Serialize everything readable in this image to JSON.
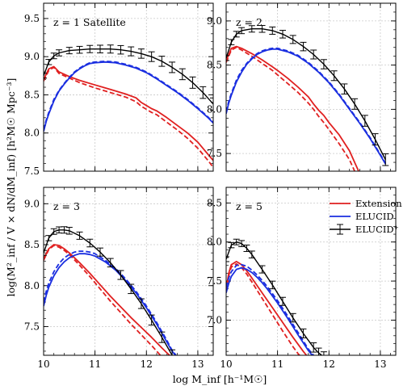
{
  "figure": {
    "xlabel": "log M_inf [h⁻¹M☉]",
    "ylabel": "log(M²_inf / V × dN/dM_inf)  [h²M☉ Mpc⁻³]",
    "legend": [
      "Extension",
      "ELUCID",
      "ELUCID⁺"
    ]
  },
  "colors": {
    "extension": "#e02020",
    "elucid": "#1a2ee0",
    "elucid_plus": "#000000",
    "grid": "#c8c8c8"
  },
  "chart_data": [
    {
      "type": "line",
      "title": "z = 1 Satellite",
      "xlim": [
        10,
        13.3
      ],
      "ylim": [
        7.5,
        9.7
      ],
      "xticks": [
        10,
        11,
        12,
        13
      ],
      "yticks": [
        7.5,
        8.0,
        8.5,
        9.0,
        9.5
      ],
      "series": [
        {
          "name": "Extension",
          "style": "solid",
          "color": "red",
          "x": [
            10.0,
            10.1,
            10.2,
            10.3,
            10.5,
            10.7,
            11.0,
            11.3,
            11.6,
            11.8,
            11.9,
            12.0,
            12.1,
            12.2,
            12.4,
            12.6,
            12.8,
            13.0,
            13.2,
            13.3
          ],
          "y": [
            8.7,
            8.84,
            8.87,
            8.8,
            8.74,
            8.69,
            8.63,
            8.57,
            8.51,
            8.46,
            8.4,
            8.36,
            8.32,
            8.29,
            8.2,
            8.1,
            8.0,
            7.88,
            7.72,
            7.64
          ]
        },
        {
          "name": "Extension (dashed)",
          "style": "dashed",
          "color": "red",
          "x": [
            10.0,
            10.1,
            10.2,
            10.3,
            10.5,
            10.7,
            11.0,
            11.3,
            11.6,
            11.8,
            11.9,
            12.0,
            12.1,
            12.2,
            12.4,
            12.6,
            12.8,
            13.0,
            13.2,
            13.3
          ],
          "y": [
            8.68,
            8.82,
            8.86,
            8.78,
            8.72,
            8.66,
            8.59,
            8.53,
            8.47,
            8.41,
            8.35,
            8.31,
            8.27,
            8.24,
            8.14,
            8.04,
            7.93,
            7.8,
            7.64,
            7.55
          ]
        },
        {
          "name": "ELUCID",
          "style": "solid",
          "color": "blue",
          "x": [
            10.0,
            10.05,
            10.1,
            10.2,
            10.3,
            10.4,
            10.5,
            10.6,
            10.7,
            10.8,
            10.9,
            11.0,
            11.2,
            11.4,
            11.6,
            11.8,
            12.0,
            12.2,
            12.4,
            12.6,
            12.8,
            13.0,
            13.2,
            13.3
          ],
          "y": [
            8.02,
            8.15,
            8.25,
            8.42,
            8.55,
            8.64,
            8.72,
            8.79,
            8.84,
            8.88,
            8.91,
            8.92,
            8.93,
            8.92,
            8.89,
            8.85,
            8.79,
            8.71,
            8.62,
            8.53,
            8.43,
            8.32,
            8.2,
            8.13
          ]
        },
        {
          "name": "ELUCID (dashed)",
          "style": "dashed",
          "color": "blue",
          "x": [
            10.0,
            10.05,
            10.1,
            10.2,
            10.3,
            10.4,
            10.5,
            10.6,
            10.7,
            10.8,
            10.9,
            11.0,
            11.2,
            11.4,
            11.6,
            11.8,
            12.0,
            12.2,
            12.4,
            12.6,
            12.8,
            13.0,
            13.2,
            13.3
          ],
          "y": [
            8.04,
            8.17,
            8.27,
            8.44,
            8.56,
            8.65,
            8.73,
            8.8,
            8.85,
            8.89,
            8.92,
            8.93,
            8.94,
            8.93,
            8.9,
            8.86,
            8.8,
            8.72,
            8.63,
            8.54,
            8.44,
            8.33,
            8.21,
            8.14
          ]
        },
        {
          "name": "ELUCID+",
          "style": "errorbar",
          "color": "black",
          "x": [
            10.0,
            10.1,
            10.2,
            10.3,
            10.5,
            10.7,
            10.9,
            11.1,
            11.3,
            11.5,
            11.7,
            11.9,
            12.1,
            12.3,
            12.5,
            12.7,
            12.9,
            13.1,
            13.3
          ],
          "y": [
            8.75,
            8.93,
            9.01,
            9.05,
            9.08,
            9.09,
            9.1,
            9.1,
            9.1,
            9.09,
            9.07,
            9.04,
            9.0,
            8.94,
            8.86,
            8.77,
            8.66,
            8.53,
            8.38
          ]
        }
      ]
    },
    {
      "type": "line",
      "title": "z = 2",
      "xlim": [
        10,
        13.3
      ],
      "ylim": [
        7.3,
        9.2
      ],
      "xticks": [
        10,
        11,
        12,
        13
      ],
      "yticks": [
        7.5,
        8.0,
        8.5,
        9.0
      ],
      "series": [
        {
          "name": "Extension",
          "style": "solid",
          "color": "red",
          "x": [
            10.0,
            10.1,
            10.2,
            10.3,
            10.5,
            10.7,
            10.9,
            11.0,
            11.2,
            11.4,
            11.6,
            11.7,
            11.8,
            11.9,
            12.0,
            12.2,
            12.4,
            12.5,
            12.6
          ],
          "y": [
            8.55,
            8.69,
            8.71,
            8.69,
            8.63,
            8.56,
            8.48,
            8.44,
            8.35,
            8.25,
            8.14,
            8.06,
            7.99,
            7.93,
            7.85,
            7.71,
            7.53,
            7.4,
            7.27
          ]
        },
        {
          "name": "Extension (dashed)",
          "style": "dashed",
          "color": "red",
          "x": [
            10.0,
            10.1,
            10.2,
            10.3,
            10.5,
            10.7,
            10.9,
            11.0,
            11.2,
            11.4,
            11.6,
            11.7,
            11.8,
            11.9,
            12.0,
            12.2,
            12.4,
            12.5
          ],
          "y": [
            8.53,
            8.67,
            8.7,
            8.67,
            8.6,
            8.52,
            8.44,
            8.39,
            8.29,
            8.19,
            8.07,
            8.0,
            7.92,
            7.85,
            7.77,
            7.61,
            7.43,
            7.3
          ]
        },
        {
          "name": "ELUCID",
          "style": "solid",
          "color": "blue",
          "x": [
            10.0,
            10.05,
            10.1,
            10.2,
            10.3,
            10.4,
            10.5,
            10.6,
            10.7,
            10.8,
            10.9,
            11.0,
            11.2,
            11.4,
            11.6,
            11.8,
            12.0,
            12.2,
            12.4,
            12.6,
            12.8,
            13.0,
            13.1
          ],
          "y": [
            7.95,
            8.07,
            8.16,
            8.31,
            8.42,
            8.51,
            8.57,
            8.62,
            8.65,
            8.67,
            8.68,
            8.68,
            8.65,
            8.6,
            8.52,
            8.42,
            8.3,
            8.16,
            8.0,
            7.84,
            7.67,
            7.48,
            7.38
          ]
        },
        {
          "name": "ELUCID (dashed)",
          "style": "dashed",
          "color": "blue",
          "x": [
            10.0,
            10.05,
            10.1,
            10.2,
            10.3,
            10.4,
            10.5,
            10.6,
            10.7,
            10.8,
            10.9,
            11.0,
            11.2,
            11.4,
            11.6,
            11.8,
            12.0,
            12.2,
            12.4,
            12.6,
            12.8,
            13.0,
            13.1
          ],
          "y": [
            7.97,
            8.09,
            8.18,
            8.33,
            8.44,
            8.52,
            8.58,
            8.63,
            8.66,
            8.68,
            8.69,
            8.69,
            8.66,
            8.61,
            8.53,
            8.43,
            8.31,
            8.17,
            8.01,
            7.85,
            7.68,
            7.49,
            7.39
          ]
        },
        {
          "name": "ELUCID+",
          "style": "errorbar",
          "color": "black",
          "x": [
            10.0,
            10.1,
            10.2,
            10.3,
            10.5,
            10.7,
            10.9,
            11.1,
            11.3,
            11.5,
            11.7,
            11.9,
            12.1,
            12.3,
            12.5,
            12.7,
            12.9,
            13.1
          ],
          "y": [
            8.58,
            8.76,
            8.85,
            8.89,
            8.91,
            8.91,
            8.89,
            8.85,
            8.79,
            8.71,
            8.62,
            8.51,
            8.38,
            8.23,
            8.06,
            7.87,
            7.66,
            7.43
          ]
        }
      ]
    },
    {
      "type": "line",
      "title": "z = 3",
      "xlim": [
        10,
        13.3
      ],
      "ylim": [
        7.15,
        9.2
      ],
      "xticks": [
        10,
        11,
        12,
        13
      ],
      "yticks": [
        7.5,
        8.0,
        8.5,
        9.0
      ],
      "series": [
        {
          "name": "Extension",
          "style": "solid",
          "color": "red",
          "x": [
            10.0,
            10.1,
            10.2,
            10.3,
            10.4,
            10.5,
            10.7,
            10.9,
            11.1,
            11.3,
            11.5,
            11.7,
            11.9,
            12.1,
            12.3,
            12.4,
            12.5
          ],
          "y": [
            8.33,
            8.45,
            8.5,
            8.49,
            8.45,
            8.4,
            8.28,
            8.15,
            8.01,
            7.87,
            7.74,
            7.61,
            7.49,
            7.37,
            7.24,
            7.18,
            7.12
          ]
        },
        {
          "name": "Extension (dashed)",
          "style": "dashed",
          "color": "red",
          "x": [
            10.0,
            10.1,
            10.2,
            10.3,
            10.4,
            10.5,
            10.7,
            10.9,
            11.1,
            11.3,
            11.5,
            11.7,
            11.9,
            12.1,
            12.2,
            12.3
          ],
          "y": [
            8.31,
            8.44,
            8.49,
            8.47,
            8.43,
            8.38,
            8.25,
            8.11,
            7.96,
            7.81,
            7.67,
            7.53,
            7.4,
            7.27,
            7.2,
            7.13
          ]
        },
        {
          "name": "ELUCID",
          "style": "solid",
          "color": "blue",
          "x": [
            10.0,
            10.05,
            10.1,
            10.2,
            10.3,
            10.4,
            10.5,
            10.6,
            10.7,
            10.8,
            10.9,
            11.0,
            11.2,
            11.4,
            11.6,
            11.8,
            12.0,
            12.2,
            12.4,
            12.5,
            12.6
          ],
          "y": [
            7.75,
            7.88,
            7.98,
            8.12,
            8.22,
            8.29,
            8.34,
            8.37,
            8.39,
            8.39,
            8.38,
            8.36,
            8.29,
            8.19,
            8.06,
            7.91,
            7.73,
            7.53,
            7.31,
            7.2,
            7.12
          ]
        },
        {
          "name": "ELUCID (dashed)",
          "style": "dashed",
          "color": "blue",
          "x": [
            10.0,
            10.05,
            10.1,
            10.2,
            10.3,
            10.4,
            10.5,
            10.6,
            10.7,
            10.8,
            10.9,
            11.0,
            11.2,
            11.4,
            11.6,
            11.8,
            12.0,
            12.2,
            12.4,
            12.5,
            12.6
          ],
          "y": [
            7.8,
            7.93,
            8.03,
            8.17,
            8.27,
            8.34,
            8.38,
            8.41,
            8.42,
            8.42,
            8.41,
            8.39,
            8.31,
            8.21,
            8.08,
            7.93,
            7.75,
            7.55,
            7.33,
            7.21,
            7.13
          ]
        },
        {
          "name": "ELUCID+",
          "style": "errorbar",
          "color": "black",
          "x": [
            10.0,
            10.1,
            10.2,
            10.3,
            10.4,
            10.5,
            10.7,
            10.9,
            11.1,
            11.3,
            11.5,
            11.7,
            11.9,
            12.1,
            12.3,
            12.5,
            12.6
          ],
          "y": [
            8.4,
            8.58,
            8.66,
            8.68,
            8.68,
            8.67,
            8.61,
            8.52,
            8.41,
            8.28,
            8.13,
            7.96,
            7.78,
            7.58,
            7.37,
            7.15,
            7.05
          ]
        }
      ]
    },
    {
      "type": "line",
      "title": "z = 5",
      "xlim": [
        10,
        13.3
      ],
      "ylim": [
        6.55,
        8.7
      ],
      "xticks": [
        10,
        11,
        12,
        13
      ],
      "yticks": [
        7.0,
        7.5,
        8.0,
        8.5
      ],
      "series": [
        {
          "name": "Extension",
          "style": "solid",
          "color": "red",
          "x": [
            10.0,
            10.05,
            10.1,
            10.2,
            10.3,
            10.4,
            10.5,
            10.7,
            10.9,
            11.1,
            11.3,
            11.5,
            11.6
          ],
          "y": [
            7.4,
            7.6,
            7.71,
            7.75,
            7.71,
            7.63,
            7.54,
            7.35,
            7.16,
            6.97,
            6.78,
            6.6,
            6.52
          ]
        },
        {
          "name": "Extension (dashed)",
          "style": "dashed",
          "color": "red",
          "x": [
            10.0,
            10.05,
            10.1,
            10.2,
            10.3,
            10.4,
            10.5,
            10.7,
            10.9,
            11.1,
            11.3,
            11.4,
            11.5
          ],
          "y": [
            7.37,
            7.57,
            7.68,
            7.72,
            7.67,
            7.59,
            7.49,
            7.28,
            7.07,
            6.86,
            6.66,
            6.57,
            6.5
          ]
        },
        {
          "name": "ELUCID",
          "style": "solid",
          "color": "blue",
          "x": [
            10.0,
            10.05,
            10.1,
            10.2,
            10.3,
            10.4,
            10.5,
            10.6,
            10.7,
            10.8,
            11.0,
            11.2,
            11.4,
            11.6,
            11.8
          ],
          "y": [
            7.35,
            7.47,
            7.56,
            7.65,
            7.67,
            7.65,
            7.61,
            7.55,
            7.48,
            7.4,
            7.22,
            7.02,
            6.81,
            6.61,
            6.45
          ]
        },
        {
          "name": "ELUCID (dashed)",
          "style": "dashed",
          "color": "blue",
          "x": [
            10.0,
            10.05,
            10.1,
            10.2,
            10.3,
            10.4,
            10.5,
            10.6,
            10.7,
            10.8,
            11.0,
            11.2,
            11.4,
            11.6,
            11.8
          ],
          "y": [
            7.42,
            7.54,
            7.62,
            7.7,
            7.71,
            7.69,
            7.64,
            7.58,
            7.51,
            7.43,
            7.25,
            7.05,
            6.84,
            6.63,
            6.47
          ]
        },
        {
          "name": "ELUCID+",
          "style": "errorbar",
          "color": "black",
          "x": [
            10.0,
            10.1,
            10.2,
            10.3,
            10.4,
            10.5,
            10.7,
            10.9,
            11.1,
            11.3,
            11.5,
            11.7,
            11.8,
            11.9
          ],
          "y": [
            7.78,
            7.96,
            8.0,
            7.98,
            7.92,
            7.84,
            7.65,
            7.45,
            7.24,
            7.03,
            6.83,
            6.65,
            6.58,
            6.53
          ]
        }
      ]
    }
  ]
}
